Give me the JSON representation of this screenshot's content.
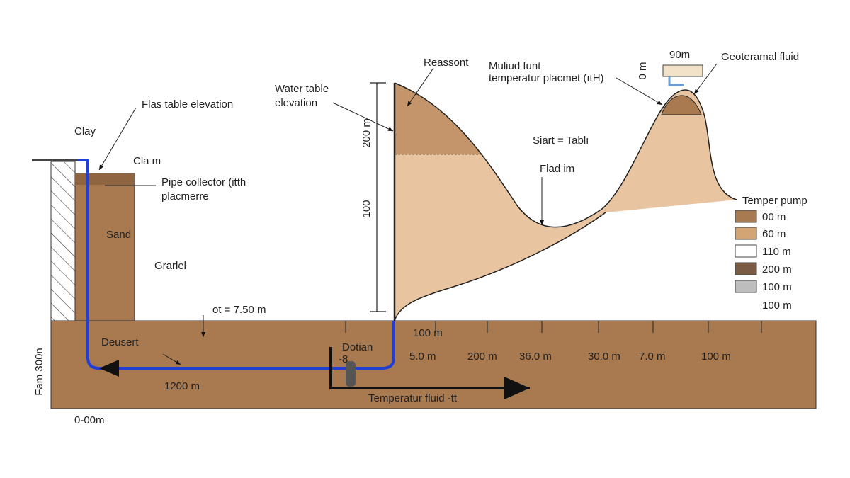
{
  "left": {
    "clay": "Clay",
    "water_table": "Flas table elevation",
    "clay_marker": "Cla m",
    "pipe_collector": [
      "Pipe collector (itth",
      "placmerre"
    ],
    "sand": "Sand",
    "gravel": "Grarlel",
    "depth_note": "ot = 7.50 m",
    "desert": "Deusert",
    "pipe_length": "1200 m",
    "vertical_label": "Fam 300n",
    "origin": "0-00m"
  },
  "center": {
    "valve": "Dotian",
    "valve_sub": "-8",
    "fluid_arrow": "Temperatur fluid -tt",
    "water_table": [
      "Water table",
      "elevation"
    ],
    "dim_top": "200 m",
    "dim_mid": "100",
    "reservoir": "Reassont",
    "module": [
      "Muliud funt",
      "temperatur placmet (ıtH)"
    ],
    "start_table": "Siart = Tablı",
    "flow": "Flad im"
  },
  "right": {
    "height": "90m",
    "height_vertical": "0 m",
    "geothermal": "Geoteramal fluid"
  },
  "legend": {
    "title": "Temper pump",
    "items": [
      "00 m",
      "60 m",
      "110 m",
      "200 m",
      "100 m",
      "100 m"
    ]
  },
  "ground": {
    "top_label": "100 m",
    "scale": [
      "5.0 m",
      "200 m",
      "36.0 m",
      "30.0 m",
      "7.0 m",
      "100 m"
    ]
  }
}
